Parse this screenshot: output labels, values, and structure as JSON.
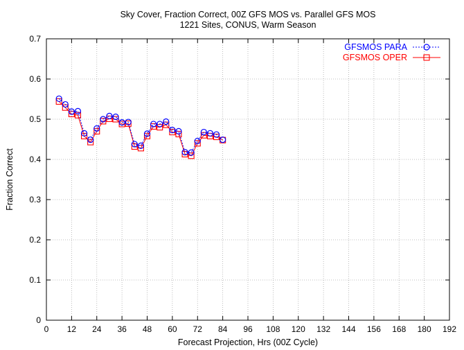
{
  "chart_data": {
    "type": "line",
    "title": "Sky Cover, Fraction Correct, 00Z GFS MOS vs. Parallel GFS MOS",
    "subtitle": "1221 Sites, CONUS, Warm Season",
    "xlabel": "Forecast Projection, Hrs (00Z Cycle)",
    "ylabel": "Fraction Correct",
    "xlim": [
      0,
      192
    ],
    "ylim": [
      0,
      0.7
    ],
    "xticks": [
      "0",
      "12",
      "24",
      "36",
      "48",
      "60",
      "72",
      "84",
      "96",
      "108",
      "120",
      "132",
      "144",
      "156",
      "168",
      "180",
      "192"
    ],
    "yticks": [
      "0",
      "0.1",
      "0.2",
      "0.3",
      "0.4",
      "0.5",
      "0.6",
      "0.7"
    ],
    "grid": true,
    "legend_position": "top-right",
    "x": [
      6,
      9,
      12,
      15,
      18,
      21,
      24,
      27,
      30,
      33,
      36,
      39,
      42,
      45,
      48,
      51,
      54,
      57,
      60,
      63,
      66,
      69,
      72,
      75,
      78,
      81,
      84
    ],
    "series": [
      {
        "name": "GFSMOS PARA",
        "color": "#0000ff",
        "marker": "circle",
        "line": "dotted",
        "values": [
          0.551,
          0.537,
          0.519,
          0.52,
          0.465,
          0.449,
          0.477,
          0.5,
          0.508,
          0.506,
          0.492,
          0.493,
          0.438,
          0.434,
          0.464,
          0.488,
          0.488,
          0.494,
          0.473,
          0.47,
          0.418,
          0.417,
          0.446,
          0.468,
          0.465,
          0.462,
          0.449
        ]
      },
      {
        "name": "GFSMOS OPER",
        "color": "#ff0000",
        "marker": "square",
        "line": "solid",
        "values": [
          0.544,
          0.529,
          0.513,
          0.51,
          0.458,
          0.443,
          0.47,
          0.495,
          0.501,
          0.5,
          0.488,
          0.489,
          0.432,
          0.428,
          0.458,
          0.482,
          0.48,
          0.486,
          0.468,
          0.463,
          0.413,
          0.409,
          0.44,
          0.46,
          0.458,
          0.456,
          0.448
        ]
      }
    ]
  }
}
